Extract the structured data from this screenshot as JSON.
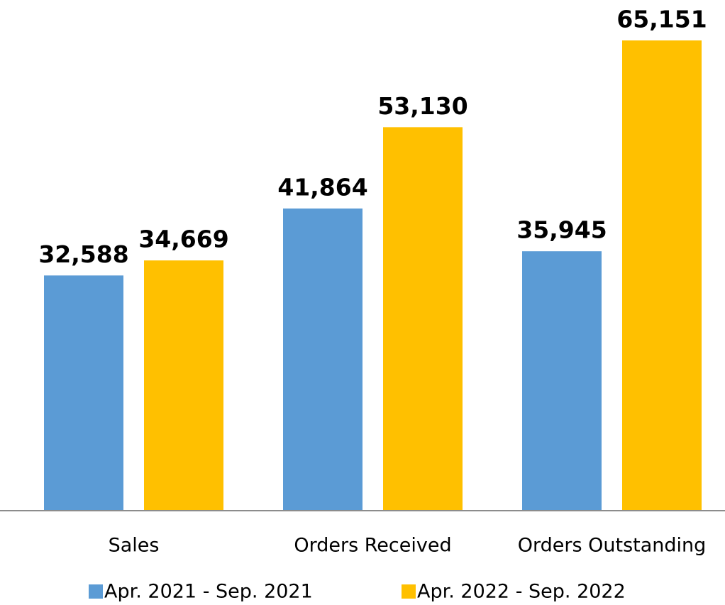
{
  "chart_data": {
    "type": "bar",
    "categories": [
      "Sales",
      "Orders Received",
      "Orders Outstanding"
    ],
    "series": [
      {
        "name": "Apr. 2021 - Sep. 2021",
        "color": "#5b9bd5",
        "values": [
          32588,
          41864,
          35945
        ],
        "value_labels": [
          "32,588",
          "41,864",
          "35,945"
        ]
      },
      {
        "name": "Apr. 2022 - Sep. 2022",
        "color": "#ffc000",
        "values": [
          34669,
          53130,
          65151
        ],
        "value_labels": [
          "34,669",
          "53,130",
          "65,151"
        ]
      }
    ]
  }
}
